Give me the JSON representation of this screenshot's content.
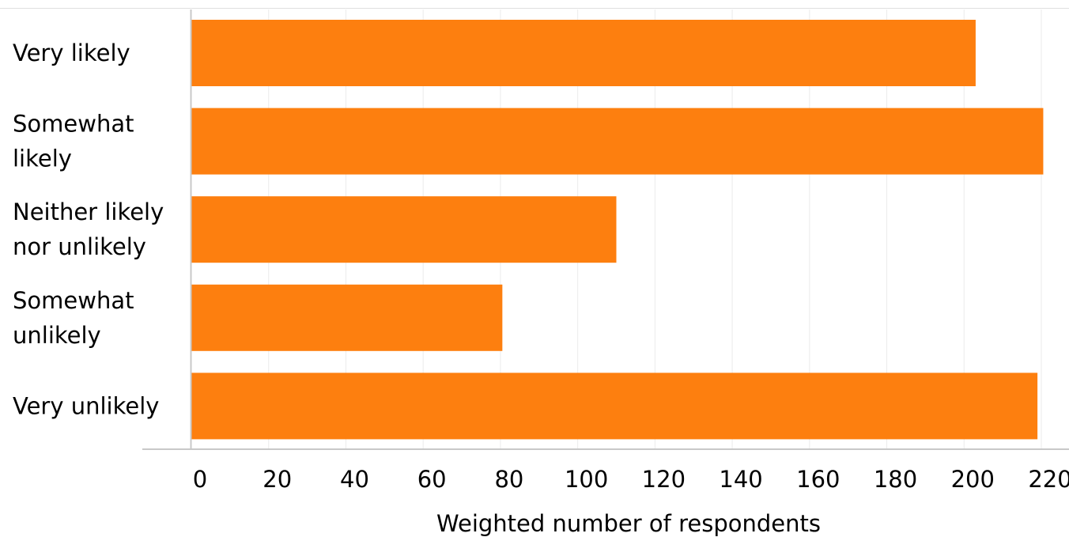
{
  "chart_data": {
    "type": "bar",
    "orientation": "horizontal",
    "categories": [
      [
        "Very likely"
      ],
      [
        "Somewhat",
        "likely"
      ],
      [
        "Neither likely",
        "nor unlikely"
      ],
      [
        "Somewhat",
        "unlikely"
      ],
      [
        "Very unlikely"
      ]
    ],
    "values": [
      203,
      220.5,
      110,
      80.5,
      219
    ],
    "xlabel": "Weighted number of respondents",
    "ylabel": "",
    "title": "",
    "xlim": [
      0,
      225
    ],
    "xticks": [
      0,
      20,
      40,
      60,
      80,
      100,
      120,
      140,
      160,
      180,
      200,
      220
    ],
    "grid": "vertical",
    "legend": "none",
    "bar_color": "#fd7f0f",
    "grid_color": "#ebebeb",
    "axis_color": "#c8c8c8"
  }
}
